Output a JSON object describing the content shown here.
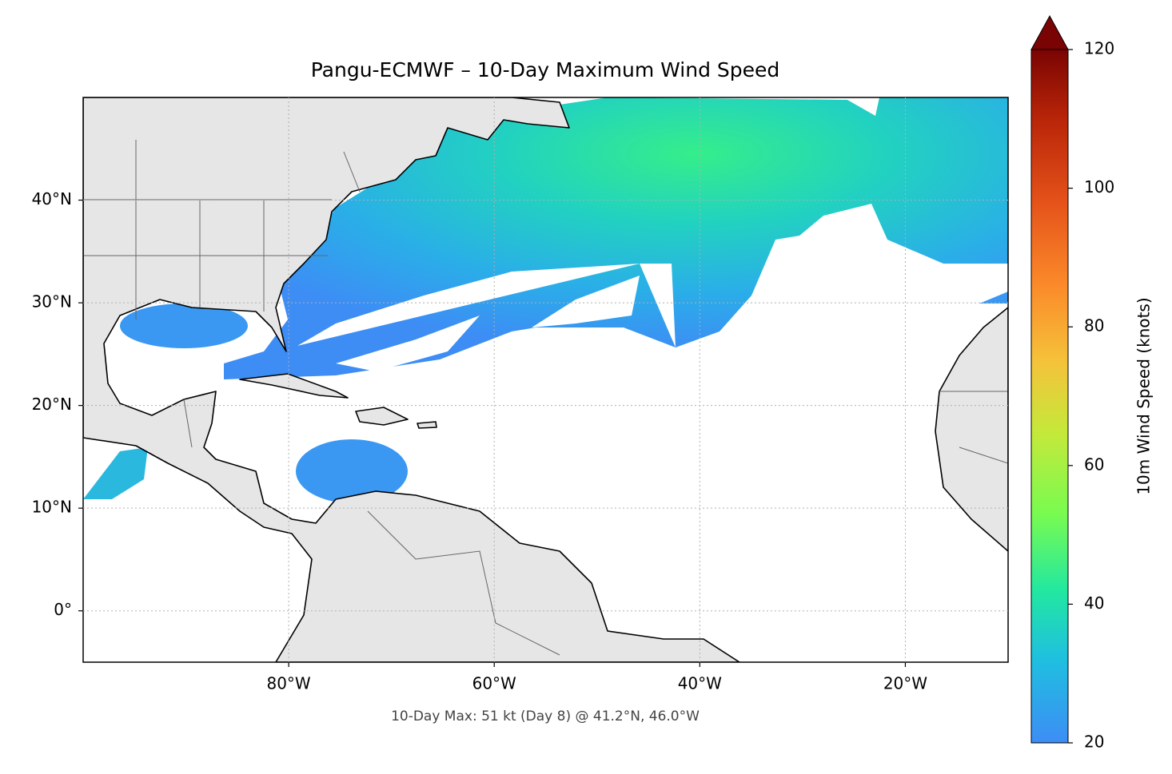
{
  "chart_data": {
    "type": "map",
    "title": "Pangu-ECMWF – 10-Day Maximum Wind Speed",
    "annotation": "10-Day Max: 51 kt (Day 8) @ 41.2°N, 46.0°W",
    "xlim": [
      -100,
      -10
    ],
    "ylim": [
      -5,
      50
    ],
    "xticks": [
      {
        "value": -80,
        "label": "80°W"
      },
      {
        "value": -60,
        "label": "60°W"
      },
      {
        "value": -40,
        "label": "40°W"
      },
      {
        "value": -20,
        "label": "20°W"
      }
    ],
    "yticks": [
      {
        "value": 0,
        "label": "0°"
      },
      {
        "value": 10,
        "label": "10°N"
      },
      {
        "value": 20,
        "label": "20°N"
      },
      {
        "value": 30,
        "label": "30°N"
      },
      {
        "value": 40,
        "label": "40°N"
      }
    ],
    "grid": true,
    "colorbar": {
      "label": "10m Wind Speed (knots)",
      "lim": [
        20,
        120
      ],
      "ticks": [
        20,
        40,
        60,
        80,
        100,
        120
      ],
      "extend": "max"
    }
  }
}
